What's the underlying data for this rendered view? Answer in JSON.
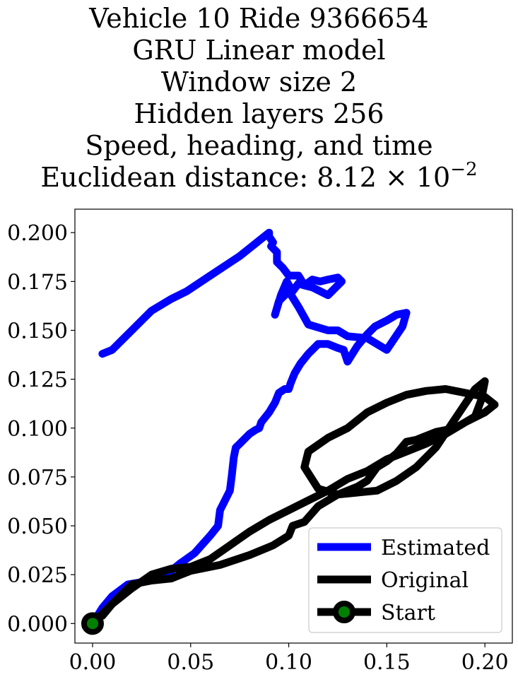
{
  "title_lines": [
    "Vehicle 10 Ride 9366654",
    "GRU Linear model",
    "Window size 2",
    "Hidden layers 256",
    "Speed, heading, and time"
  ],
  "title_distance": {
    "prefix": "Euclidean distance: 8.12 × 10",
    "exponent": "−2"
  },
  "chart_data": {
    "type": "line",
    "title": "Vehicle 10 Ride 9366654 / GRU Linear model / Window size 2 / Hidden layers 256 / Speed, heading, and time / Euclidean distance: 8.12 × 10^-2",
    "xlabel": "",
    "ylabel": "",
    "xlim": [
      -0.009,
      0.214
    ],
    "ylim": [
      -0.01,
      0.212
    ],
    "xticks": [
      0.0,
      0.05,
      0.1,
      0.15,
      0.2
    ],
    "xtick_labels": [
      "0.00",
      "0.05",
      "0.10",
      "0.15",
      "0.20"
    ],
    "yticks": [
      0.0,
      0.025,
      0.05,
      0.075,
      0.1,
      0.125,
      0.15,
      0.175,
      0.2
    ],
    "ytick_labels": [
      "0.000",
      "0.025",
      "0.050",
      "0.075",
      "0.100",
      "0.125",
      "0.150",
      "0.175",
      "0.200"
    ],
    "grid": false,
    "legend_position": "lower-right",
    "series": [
      {
        "name": "Estimated",
        "color": "#0000ff",
        "x": [
          0.0,
          0.005,
          0.01,
          0.018,
          0.03,
          0.04,
          0.045,
          0.052,
          0.06,
          0.064,
          0.065,
          0.07,
          0.071,
          0.072,
          0.073,
          0.075,
          0.078,
          0.08,
          0.083,
          0.085,
          0.086,
          0.09,
          0.093,
          0.095,
          0.098,
          0.1,
          0.101,
          0.103,
          0.106,
          0.11,
          0.115,
          0.12,
          0.125,
          0.128,
          0.13,
          0.135,
          0.14,
          0.144,
          0.15,
          0.155,
          0.16,
          0.158,
          0.15,
          0.14,
          0.13,
          0.125,
          0.12,
          0.11,
          0.105,
          0.1,
          0.095,
          0.093,
          0.096,
          0.099,
          0.102,
          0.105,
          0.108,
          0.112,
          0.116,
          0.12,
          0.125,
          0.127,
          0.12,
          0.112,
          0.108,
          0.105,
          0.1,
          0.097,
          0.094,
          0.094,
          0.091,
          0.092,
          0.09,
          0.09,
          0.085,
          0.075,
          0.06,
          0.048,
          0.04,
          0.03,
          0.025,
          0.02,
          0.015,
          0.01,
          0.005
        ],
        "y": [
          0.0,
          0.008,
          0.014,
          0.02,
          0.022,
          0.027,
          0.031,
          0.036,
          0.045,
          0.05,
          0.058,
          0.068,
          0.076,
          0.085,
          0.09,
          0.092,
          0.095,
          0.097,
          0.099,
          0.1,
          0.103,
          0.108,
          0.113,
          0.118,
          0.12,
          0.12,
          0.123,
          0.128,
          0.133,
          0.138,
          0.143,
          0.143,
          0.141,
          0.14,
          0.134,
          0.142,
          0.148,
          0.152,
          0.155,
          0.158,
          0.159,
          0.152,
          0.14,
          0.146,
          0.147,
          0.15,
          0.15,
          0.153,
          0.162,
          0.17,
          0.165,
          0.158,
          0.168,
          0.175,
          0.17,
          0.174,
          0.173,
          0.176,
          0.175,
          0.176,
          0.177,
          0.175,
          0.168,
          0.172,
          0.173,
          0.178,
          0.178,
          0.182,
          0.185,
          0.19,
          0.193,
          0.195,
          0.198,
          0.2,
          0.196,
          0.188,
          0.178,
          0.17,
          0.166,
          0.16,
          0.155,
          0.15,
          0.145,
          0.14,
          0.138
        ]
      },
      {
        "name": "Original",
        "color": "#000000",
        "x": [
          0.0,
          0.01,
          0.02,
          0.03,
          0.04,
          0.05,
          0.06,
          0.07,
          0.08,
          0.09,
          0.1,
          0.11,
          0.12,
          0.13,
          0.14,
          0.15,
          0.16,
          0.17,
          0.18,
          0.19,
          0.2,
          0.205,
          0.2,
          0.19,
          0.18,
          0.17,
          0.16,
          0.15,
          0.14,
          0.13,
          0.12,
          0.11,
          0.108,
          0.115,
          0.125,
          0.135,
          0.14,
          0.145,
          0.15,
          0.155,
          0.16,
          0.165,
          0.175,
          0.185,
          0.195,
          0.198,
          0.2,
          0.195,
          0.185,
          0.175,
          0.165,
          0.155,
          0.145,
          0.135,
          0.125,
          0.115,
          0.108,
          0.102,
          0.1,
          0.092,
          0.08,
          0.065,
          0.05,
          0.04,
          0.03,
          0.02,
          0.01,
          0.005
        ],
        "y": [
          0.0,
          0.01,
          0.018,
          0.025,
          0.028,
          0.029,
          0.033,
          0.04,
          0.047,
          0.053,
          0.058,
          0.063,
          0.068,
          0.074,
          0.078,
          0.084,
          0.088,
          0.092,
          0.097,
          0.103,
          0.108,
          0.112,
          0.116,
          0.118,
          0.12,
          0.119,
          0.117,
          0.113,
          0.108,
          0.1,
          0.095,
          0.088,
          0.08,
          0.069,
          0.066,
          0.07,
          0.073,
          0.08,
          0.083,
          0.087,
          0.093,
          0.094,
          0.098,
          0.1,
          0.106,
          0.114,
          0.124,
          0.12,
          0.105,
          0.09,
          0.08,
          0.073,
          0.068,
          0.067,
          0.066,
          0.06,
          0.052,
          0.05,
          0.045,
          0.04,
          0.035,
          0.03,
          0.027,
          0.023,
          0.022,
          0.02,
          0.01,
          0.004
        ]
      }
    ],
    "start_marker": {
      "name": "Start",
      "x": 0.0,
      "y": 0.0,
      "edge_color": "#000000",
      "face_color": "#008000"
    }
  }
}
